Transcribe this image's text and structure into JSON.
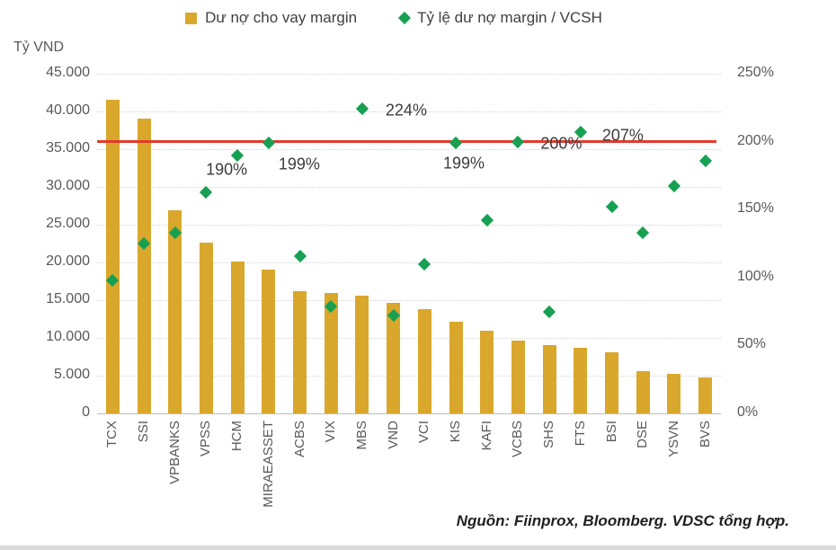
{
  "legend": {
    "items": [
      {
        "label": "Dư nợ cho vay margin",
        "marker": "square",
        "color": "#d9a72b"
      },
      {
        "label": "Tỷ lệ dư nợ margin / VCSH",
        "marker": "diamond",
        "color": "#17a052"
      }
    ]
  },
  "source_note": "Nguồn: Fiinprox, Bloomberg. VDSC tổng hợp.",
  "colors": {
    "bar": "#d9a72b",
    "marker": "#17a052",
    "reference_line": "#e23b2c",
    "axis_text": "#595959",
    "label_text": "#3c3c3c",
    "gridline": "#d4d4d4",
    "axis_line": "#bfbfbf",
    "bottom_strip": "#d9d9d9"
  },
  "chart_data": {
    "type": "combo",
    "categories": [
      "TCX",
      "SSI",
      "VPBANKS",
      "VPSS",
      "HCM",
      "MIRAEASSET",
      "ACBS",
      "VIX",
      "MBS",
      "VND",
      "VCI",
      "KIS",
      "KAFI",
      "VCBS",
      "SHS",
      "FTS",
      "BSI",
      "DSE",
      "YSVN",
      "BVS"
    ],
    "series": [
      {
        "name": "Dư nợ cho vay margin",
        "type": "bar",
        "axis": "left",
        "unit": "Tỷ VND",
        "values": [
          41600,
          39100,
          26900,
          22600,
          20100,
          19000,
          16200,
          16000,
          15600,
          14700,
          13800,
          12100,
          10900,
          9600,
          9000,
          8700,
          8100,
          5600,
          5200,
          4800
        ]
      },
      {
        "name": "Tỷ lệ dư nợ margin / VCSH",
        "type": "scatter",
        "axis": "right",
        "unit": "%",
        "values": [
          98,
          125,
          133,
          163,
          190,
          199,
          116,
          79,
          224,
          72,
          110,
          199,
          142,
          200,
          75,
          207,
          152,
          133,
          167,
          186
        ],
        "point_labels": [
          {
            "category": "HCM",
            "text": "190%"
          },
          {
            "category": "MIRAEASSET",
            "text": "199%"
          },
          {
            "category": "MBS",
            "text": "224%"
          },
          {
            "category": "KIS",
            "text": "199%"
          },
          {
            "category": "VCBS",
            "text": "200%"
          },
          {
            "category": "FTS",
            "text": "207%"
          }
        ]
      }
    ],
    "left_axis": {
      "title": "Tỷ VND",
      "min": 0,
      "max": 45000,
      "step": 5000,
      "tick_labels": [
        "45.000",
        "40.000",
        "35.000",
        "30.000",
        "25.000",
        "20.000",
        "15.000",
        "10.000",
        "5.000",
        "0"
      ]
    },
    "right_axis": {
      "min": 0,
      "max": 250,
      "step": 50,
      "tick_labels": [
        "250%",
        "200%",
        "150%",
        "100%",
        "50%",
        "0%"
      ]
    },
    "reference_line": {
      "axis": "right",
      "value": 200
    },
    "grid": "horizontal-dotted",
    "legend_position": "top"
  }
}
